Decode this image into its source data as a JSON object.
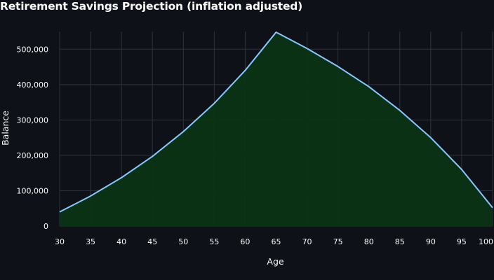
{
  "chart_data": {
    "type": "area",
    "title": "Retirement Savings Projection (inflation adjusted)",
    "xlabel": "Age",
    "ylabel": "Balance",
    "xlim": [
      30,
      100
    ],
    "ylim": [
      0,
      550000
    ],
    "x_ticks": [
      30,
      35,
      40,
      45,
      50,
      55,
      60,
      65,
      70,
      75,
      80,
      85,
      90,
      95,
      100
    ],
    "y_ticks": [
      0,
      100000,
      200000,
      300000,
      400000,
      500000
    ],
    "y_tick_labels": [
      "0",
      "100,000",
      "200,000",
      "300,000",
      "400,000",
      "500,000"
    ],
    "grid": true,
    "legend": "none",
    "colors": {
      "background": "#0e1117",
      "line": "#83c9ff",
      "fill": "#0b3414",
      "grid": "#2e323d",
      "text": "#fafafa"
    },
    "series": [
      {
        "x": [
          30,
          35,
          40,
          45,
          50,
          55,
          60,
          65,
          70,
          75,
          80,
          85,
          90,
          95,
          100
        ],
        "values": [
          40000,
          85000,
          137000,
          197000,
          267000,
          347000,
          440000,
          548000,
          502000,
          451000,
          394000,
          327000,
          250000,
          160000,
          52000
        ]
      }
    ]
  }
}
